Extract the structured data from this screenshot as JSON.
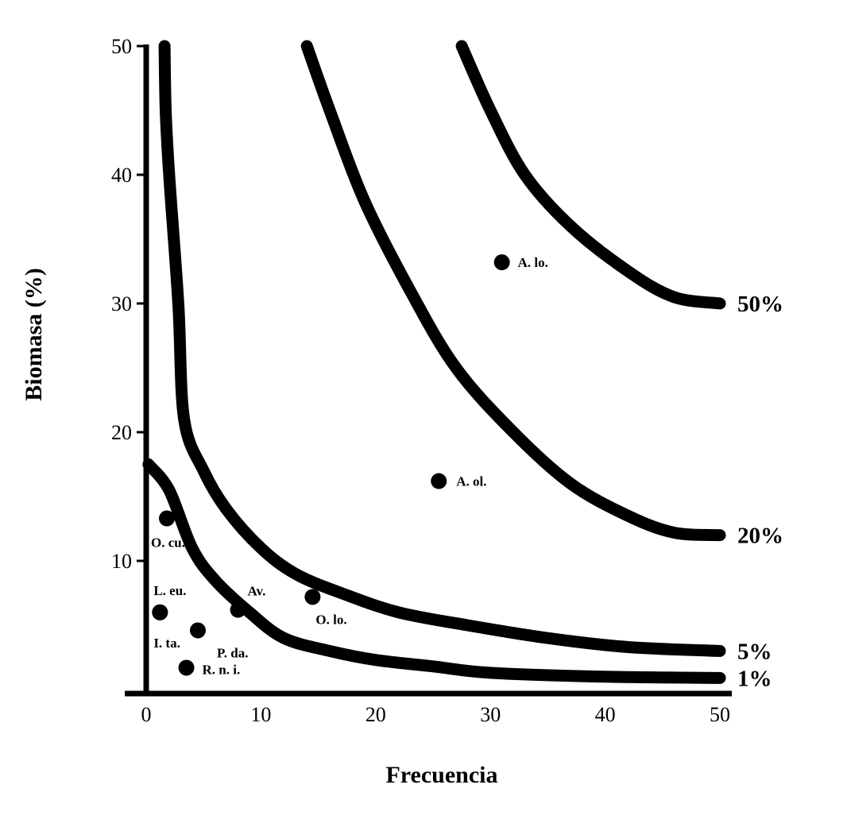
{
  "chart_data": {
    "type": "scatter",
    "xlabel": "Frecuencia",
    "ylabel": "Biomasa (%)",
    "xlim": [
      0,
      50
    ],
    "ylim": [
      0,
      50
    ],
    "x_ticks": [
      "0",
      "10",
      "20",
      "30",
      "40",
      "50"
    ],
    "y_ticks": [
      "10",
      "20",
      "30",
      "40",
      "50"
    ],
    "grid": false,
    "legend": "none",
    "points": [
      {
        "label": "A. lo.",
        "x": 31,
        "y": 33.2
      },
      {
        "label": "A. ol.",
        "x": 25.5,
        "y": 16.2
      },
      {
        "label": "O. lo.",
        "x": 14.5,
        "y": 7.2
      },
      {
        "label": "Av.",
        "x": 8,
        "y": 6.2
      },
      {
        "label": "O. cu.",
        "x": 1.8,
        "y": 13.3
      },
      {
        "label": "L. eu.",
        "x": 1.2,
        "y": 6.0
      },
      {
        "label": "I. ta.",
        "x": 1.2,
        "y": 6.0
      },
      {
        "label": "P. da.",
        "x": 4.5,
        "y": 4.6
      },
      {
        "label": "R. n. i.",
        "x": 3.5,
        "y": 1.7
      }
    ],
    "isolines": [
      {
        "label": "50%",
        "points": [
          [
            27.5,
            50
          ],
          [
            30,
            45
          ],
          [
            33,
            40
          ],
          [
            37,
            36
          ],
          [
            42,
            32.5
          ],
          [
            46,
            30.5
          ],
          [
            50,
            30
          ]
        ]
      },
      {
        "label": "20%",
        "points": [
          [
            14,
            50
          ],
          [
            16,
            45
          ],
          [
            19,
            38
          ],
          [
            23,
            31
          ],
          [
            27,
            25
          ],
          [
            32,
            20
          ],
          [
            37,
            16
          ],
          [
            42,
            13.5
          ],
          [
            46,
            12.2
          ],
          [
            50,
            12
          ]
        ]
      },
      {
        "label": "5%",
        "points": [
          [
            1.6,
            50
          ],
          [
            1.7,
            45
          ],
          [
            2,
            40
          ],
          [
            2.8,
            30
          ],
          [
            3.3,
            21
          ],
          [
            5,
            17
          ],
          [
            7,
            14
          ],
          [
            10,
            11
          ],
          [
            13,
            9
          ],
          [
            17,
            7.5
          ],
          [
            22,
            6
          ],
          [
            28,
            5
          ],
          [
            35,
            4
          ],
          [
            42,
            3.3
          ],
          [
            50,
            3
          ]
        ]
      },
      {
        "label": "1%",
        "points": [
          [
            0.2,
            17.5
          ],
          [
            2,
            15.5
          ],
          [
            4,
            11
          ],
          [
            6,
            8.5
          ],
          [
            9,
            6
          ],
          [
            12,
            4
          ],
          [
            16,
            3
          ],
          [
            20,
            2.3
          ],
          [
            25,
            1.8
          ],
          [
            30,
            1.3
          ],
          [
            40,
            1
          ],
          [
            50,
            0.9
          ]
        ]
      }
    ]
  }
}
